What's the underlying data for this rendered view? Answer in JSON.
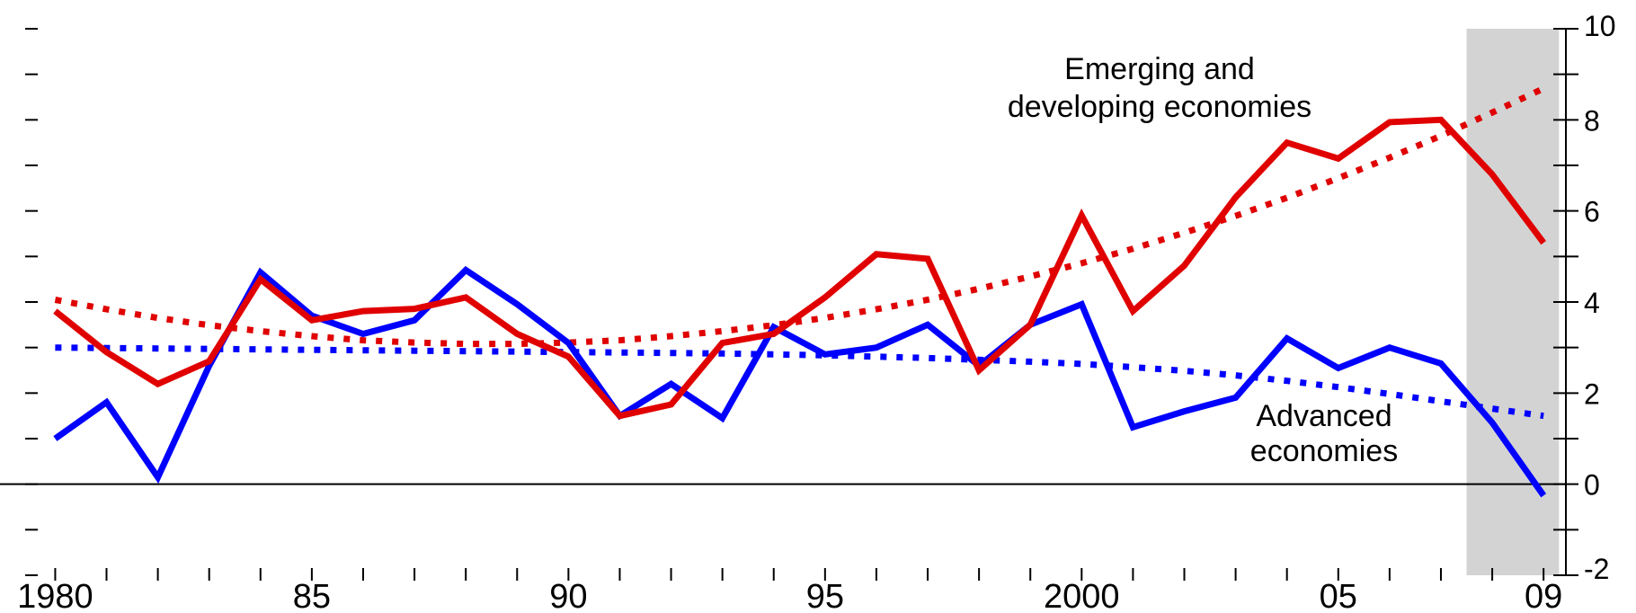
{
  "chart_data": {
    "type": "line",
    "x": [
      1980,
      1981,
      1982,
      1983,
      1984,
      1985,
      1986,
      1987,
      1988,
      1989,
      1990,
      1991,
      1992,
      1993,
      1994,
      1995,
      1996,
      1997,
      1998,
      1999,
      2000,
      2001,
      2002,
      2003,
      2004,
      2005,
      2006,
      2007,
      2008,
      2009
    ],
    "x_tick_values": [
      1980,
      1985,
      1990,
      1995,
      2000,
      2005,
      2009
    ],
    "x_tick_labels": [
      "1980",
      "85",
      "90",
      "95",
      "2000",
      "05",
      "09"
    ],
    "xlim": [
      1979.8,
      2009.4
    ],
    "ylim": [
      -2,
      10
    ],
    "y_ticks": [
      -2,
      0,
      2,
      4,
      6,
      8,
      10
    ],
    "y_tick_labels": [
      "-2",
      "0",
      "2",
      "4",
      "6",
      "8",
      "10"
    ],
    "grid": false,
    "shaded_region": [
      2007.5,
      2009.3
    ],
    "series": [
      {
        "color": "#e00000",
        "style": "solid",
        "values": [
          3.8,
          2.9,
          2.2,
          2.7,
          4.5,
          3.6,
          3.8,
          3.85,
          4.1,
          3.3,
          2.8,
          1.5,
          1.75,
          3.1,
          3.3,
          4.1,
          5.05,
          4.95,
          2.5,
          3.5,
          5.9,
          3.8,
          4.8,
          6.3,
          7.5,
          7.15,
          7.95,
          8.0,
          6.8,
          5.3
        ]
      },
      {
        "color": "#0000ff",
        "style": "solid",
        "values": [
          1.0,
          1.8,
          0.15,
          2.6,
          4.65,
          3.7,
          3.3,
          3.6,
          4.7,
          3.95,
          3.1,
          1.5,
          2.2,
          1.45,
          3.45,
          2.85,
          3.0,
          3.5,
          2.6,
          3.5,
          3.95,
          1.25,
          1.6,
          1.9,
          3.2,
          2.55,
          3.0,
          2.65,
          1.35,
          -0.25
        ]
      },
      {
        "color": "#e00000",
        "style": "dotted",
        "values": [
          4.05,
          3.84,
          3.65,
          3.49,
          3.36,
          3.25,
          3.16,
          3.11,
          3.08,
          3.08,
          3.11,
          3.16,
          3.25,
          3.36,
          3.49,
          3.65,
          3.84,
          4.05,
          4.29,
          4.56,
          4.85,
          5.17,
          5.52,
          5.89,
          6.29,
          6.72,
          7.17,
          7.65,
          8.16,
          8.69
        ]
      },
      {
        "color": "#0000ff",
        "style": "dotted",
        "values": [
          3.0,
          2.99,
          2.98,
          2.97,
          2.96,
          2.95,
          2.94,
          2.93,
          2.92,
          2.91,
          2.9,
          2.89,
          2.88,
          2.87,
          2.85,
          2.83,
          2.8,
          2.77,
          2.73,
          2.69,
          2.64,
          2.57,
          2.49,
          2.39,
          2.27,
          2.13,
          1.98,
          1.82,
          1.66,
          1.5
        ]
      }
    ],
    "annotations": {
      "emerging_line1": "Emerging and",
      "emerging_line2": "developing economies",
      "advanced_line1": "Advanced",
      "advanced_line2": "economies"
    }
  }
}
